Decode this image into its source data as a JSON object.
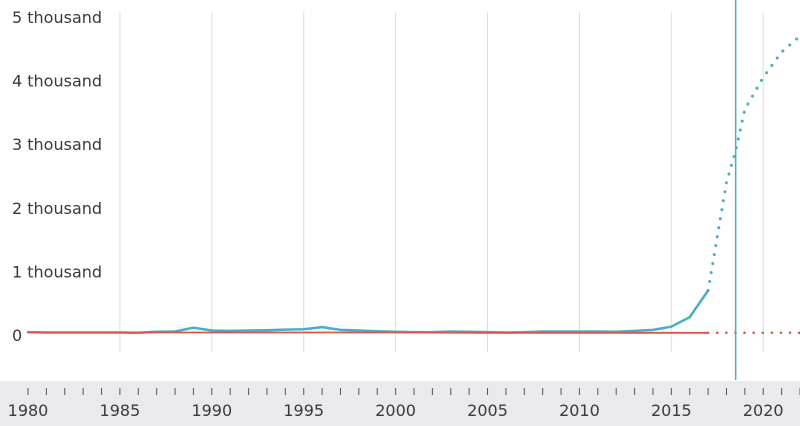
{
  "chart_data": {
    "type": "line",
    "title": "",
    "xlabel": "",
    "ylabel": "",
    "xlim": [
      1980,
      2022
    ],
    "ylim": [
      0,
      5000
    ],
    "y_ticks": [
      {
        "value": 0,
        "label": "0"
      },
      {
        "value": 1000,
        "label": "1 thousand"
      },
      {
        "value": 2000,
        "label": "2 thousand"
      },
      {
        "value": 3000,
        "label": "3 thousand"
      },
      {
        "value": 4000,
        "label": "4 thousand"
      },
      {
        "value": 5000,
        "label": "5 thousand"
      }
    ],
    "x_ticks": [
      {
        "value": 1980,
        "label": "1980"
      },
      {
        "value": 1985,
        "label": "1985"
      },
      {
        "value": 1990,
        "label": "1990"
      },
      {
        "value": 1995,
        "label": "1995"
      },
      {
        "value": 2000,
        "label": "2000"
      },
      {
        "value": 2005,
        "label": "2005"
      },
      {
        "value": 2010,
        "label": "2010"
      },
      {
        "value": 2015,
        "label": "2015"
      },
      {
        "value": 2020,
        "label": "2020"
      }
    ],
    "current_year_marker": 2018.5,
    "grid": "vertical",
    "series": [
      {
        "color": "#4aadc1",
        "style": "solid",
        "x": [
          1980,
          1981,
          1982,
          1983,
          1984,
          1985,
          1986,
          1987,
          1988,
          1989,
          1990,
          1991,
          1992,
          1993,
          1994,
          1995,
          1996,
          1997,
          1998,
          1999,
          2000,
          2001,
          2002,
          2003,
          2004,
          2005,
          2006,
          2007,
          2008,
          2009,
          2010,
          2011,
          2012,
          2013,
          2014,
          2015,
          2016,
          2017
        ],
        "values": [
          45,
          40,
          40,
          40,
          40,
          40,
          35,
          50,
          55,
          115,
          70,
          65,
          70,
          75,
          85,
          90,
          125,
          80,
          70,
          60,
          50,
          45,
          45,
          55,
          50,
          45,
          40,
          45,
          55,
          55,
          55,
          55,
          50,
          65,
          80,
          130,
          280,
          700
        ]
      },
      {
        "color": "#4aadc1",
        "style": "dotted",
        "x": [
          2017,
          2018,
          2018.5,
          2019,
          2020,
          2021,
          2022
        ],
        "values": [
          700,
          2400,
          2900,
          3550,
          4050,
          4450,
          4700
        ]
      },
      {
        "color": "#d9534f",
        "style": "solid",
        "x": [
          1980,
          1985,
          1990,
          1995,
          2000,
          2005,
          2010,
          2015,
          2017
        ],
        "values": [
          40,
          40,
          40,
          40,
          40,
          35,
          35,
          35,
          35
        ]
      },
      {
        "color": "#d9534f",
        "style": "dotted",
        "x": [
          2017,
          2022
        ],
        "values": [
          35,
          35
        ]
      }
    ]
  }
}
